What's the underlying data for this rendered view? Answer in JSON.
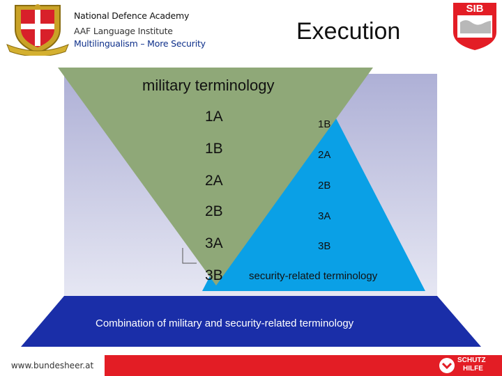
{
  "header": {
    "line1": "National Defence Academy",
    "line2": "AAF Language Institute",
    "line3": "Multilingualism – More Security",
    "title": "Execution",
    "logo_right_text": "SIB"
  },
  "diagram": {
    "military_label": "military terminology",
    "security_label": "security-related terminology",
    "combination_label": "Combination of military and security-related terminology",
    "military_levels": [
      "1A",
      "1B",
      "2A",
      "2B",
      "3A",
      "3B"
    ],
    "security_levels": [
      "1B",
      "2A",
      "2B",
      "3A",
      "3B"
    ]
  },
  "footer": {
    "url": "www.bundesheer.at",
    "logo_text_1": "SCHUTZ",
    "logo_text_2": "HILFE"
  },
  "colors": {
    "green": "#8fa878",
    "blue": "#0aa0e6",
    "navy": "#1a2ea8",
    "red": "#e31d25",
    "lavender": "#c6c8e4"
  }
}
